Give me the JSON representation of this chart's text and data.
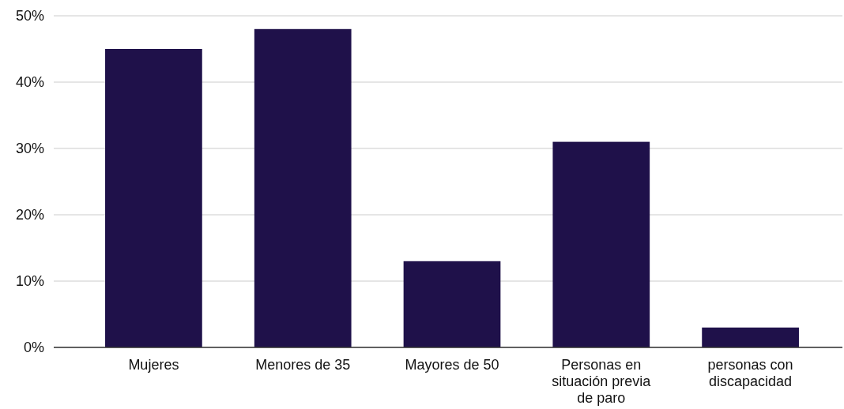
{
  "chart_data": {
    "type": "bar",
    "categories": [
      "Mujeres",
      "Menores de 35",
      "Mayores de 50",
      "Personas en situación previa de paro",
      "personas con discapacidad"
    ],
    "values": [
      45,
      48,
      13,
      31,
      3
    ],
    "color": "#1f114a",
    "ylim": [
      0,
      50
    ],
    "yticks": [
      {
        "value": 0,
        "label": "0%"
      },
      {
        "value": 10,
        "label": "10%"
      },
      {
        "value": 20,
        "label": "20%"
      },
      {
        "value": 30,
        "label": "30%"
      },
      {
        "value": 40,
        "label": "40%"
      },
      {
        "value": 50,
        "label": "50%"
      }
    ],
    "grid": "y"
  }
}
